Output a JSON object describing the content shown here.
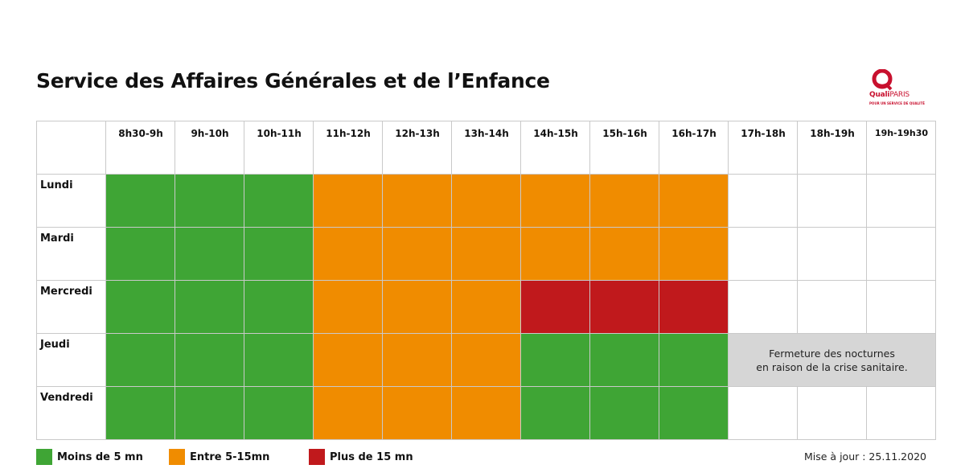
{
  "title": "Service des Affaires Générales et de l’Enfance",
  "logo": {
    "brand_main": "Quali",
    "brand_accent": "PARIS",
    "tagline": "POUR UN SERVICE DE QUALITÉ"
  },
  "colors": {
    "low": "#3fa535",
    "mid": "#f08c00",
    "high": "#c0191c",
    "closed": "#d6d6d6",
    "empty": "#ffffff"
  },
  "chart_data": {
    "type": "heatmap",
    "categories": [
      "8h30-9h",
      "9h-10h",
      "10h-11h",
      "11h-12h",
      "12h-13h",
      "13h-14h",
      "14h-15h",
      "15h-16h",
      "16h-17h",
      "17h-18h",
      "18h-19h",
      "19h-19h30"
    ],
    "rows": [
      "Lundi",
      "Mardi",
      "Mercredi",
      "Jeudi",
      "Vendredi"
    ],
    "values": [
      [
        "low",
        "low",
        "low",
        "mid",
        "mid",
        "mid",
        "mid",
        "mid",
        "mid",
        "none",
        "none",
        "none"
      ],
      [
        "low",
        "low",
        "low",
        "mid",
        "mid",
        "mid",
        "mid",
        "mid",
        "mid",
        "none",
        "none",
        "none"
      ],
      [
        "low",
        "low",
        "low",
        "mid",
        "mid",
        "mid",
        "high",
        "high",
        "high",
        "none",
        "none",
        "none"
      ],
      [
        "low",
        "low",
        "low",
        "mid",
        "mid",
        "mid",
        "low",
        "low",
        "low",
        "closed",
        "closed",
        "closed"
      ],
      [
        "low",
        "low",
        "low",
        "mid",
        "mid",
        "mid",
        "low",
        "low",
        "low",
        "none",
        "none",
        "none"
      ]
    ],
    "annotation": "Fermeture des nocturnes en raison de la crise sanitaire.",
    "legend": [
      {
        "key": "low",
        "label": "Moins de 5 mn"
      },
      {
        "key": "mid",
        "label": "Entre 5-15mn"
      },
      {
        "key": "high",
        "label": "Plus de 15 mn"
      }
    ]
  },
  "note_lines": [
    "Fermeture des nocturnes",
    "en raison de la crise sanitaire."
  ],
  "update_text": "Mise à jour : 25.11.2020"
}
